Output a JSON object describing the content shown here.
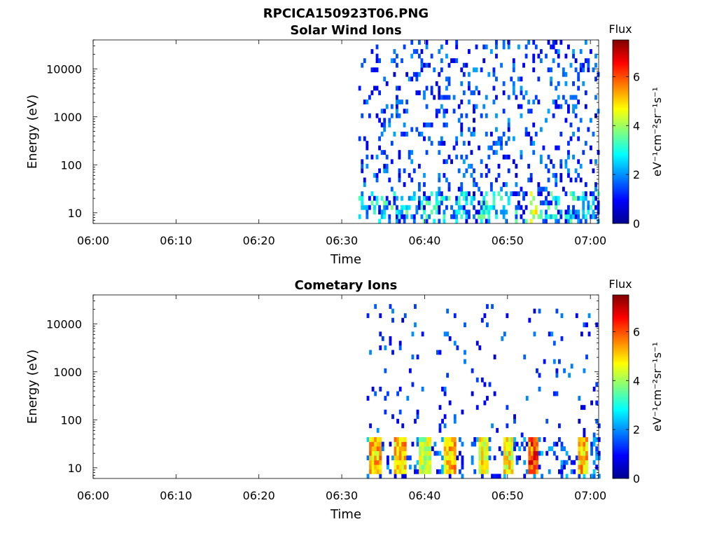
{
  "figure": {
    "filename_title": "RPCICA150923T06.PNG"
  },
  "chart_data": [
    {
      "type": "heatmap",
      "title": "Solar Wind Ions",
      "xlabel": "Time",
      "ylabel": "Energy (eV)",
      "x_ticks": [
        "06:00",
        "06:10",
        "06:20",
        "06:30",
        "06:40",
        "06:50",
        "07:00"
      ],
      "x_range": [
        "06:00",
        "07:01"
      ],
      "y_scale": "log",
      "y_ticks": [
        "10",
        "100",
        "1000",
        "10000"
      ],
      "y_range": [
        6,
        40000
      ],
      "colorbar": {
        "label": "Flux",
        "units": "eV⁻¹cm⁻²sr⁻¹s⁻¹",
        "ticks": [
          "0",
          "2",
          "4",
          "6"
        ],
        "range": [
          0,
          7.5
        ],
        "colormap": "jet"
      },
      "data_start_time": "06:32",
      "summary": "Sparse low-flux (0-2) counts across 10-40000 eV after 06:32; moderate flux (2-4) bands below ~30 eV; occasional higher flux (~4-5) near 06:53 at ~20 eV."
    },
    {
      "type": "heatmap",
      "title": "Cometary Ions",
      "xlabel": "Time",
      "ylabel": "Energy (eV)",
      "x_ticks": [
        "06:00",
        "06:10",
        "06:20",
        "06:30",
        "06:40",
        "06:50",
        "07:00"
      ],
      "x_range": [
        "06:00",
        "07:01"
      ],
      "y_scale": "log",
      "y_ticks": [
        "10",
        "100",
        "1000",
        "10000"
      ],
      "y_range": [
        6,
        40000
      ],
      "colorbar": {
        "label": "Flux",
        "units": "eV⁻¹cm⁻²sr⁻¹s⁻¹",
        "ticks": [
          "0",
          "2",
          "4",
          "6"
        ],
        "range": [
          0,
          7.5
        ],
        "colormap": "jet"
      },
      "data_start_time": "06:33",
      "bursts": [
        {
          "time": "06:34",
          "peak_flux": 6.0
        },
        {
          "time": "06:37",
          "peak_flux": 6.0
        },
        {
          "time": "06:40",
          "peak_flux": 5.0
        },
        {
          "time": "06:43",
          "peak_flux": 6.0
        },
        {
          "time": "06:47",
          "peak_flux": 5.5
        },
        {
          "time": "06:50",
          "peak_flux": 5.5
        },
        {
          "time": "06:53",
          "peak_flux": 7.0
        },
        {
          "time": "06:59",
          "peak_flux": 6.0
        }
      ],
      "summary": "Intense flux (5-7) bursts at 10-40 eV recurring every ~3 minutes after 06:33; sparse low-flux counts up to ~20000 eV."
    }
  ]
}
